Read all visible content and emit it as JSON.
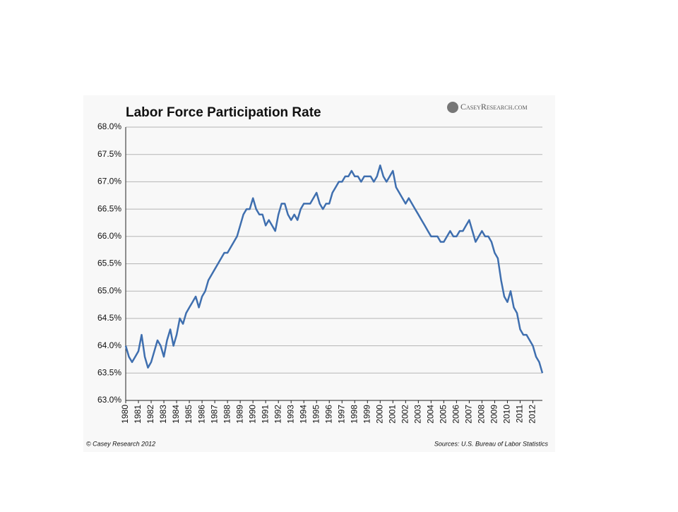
{
  "chart_data": {
    "type": "line",
    "title": "Labor Force Participation Rate",
    "logo": "CaseyResearch.com",
    "footnote": "© Casey Research 2012",
    "source": "Sources:  U.S. Bureau of Labor Statistics",
    "color": "#3f6faf",
    "grid": true,
    "xlim": [
      1980,
      2012.75
    ],
    "xticks": [
      1980,
      1981,
      1982,
      1983,
      1984,
      1985,
      1986,
      1987,
      1988,
      1989,
      1990,
      1991,
      1992,
      1993,
      1994,
      1995,
      1996,
      1997,
      1998,
      1999,
      2000,
      2001,
      2002,
      2003,
      2004,
      2005,
      2006,
      2007,
      2008,
      2009,
      2010,
      2011,
      2012
    ],
    "ylim": [
      63,
      68
    ],
    "yticks": [
      {
        "value": 63,
        "label": "63.0%"
      },
      {
        "value": 63.5,
        "label": "63.5%"
      },
      {
        "value": 64,
        "label": "64.0%"
      },
      {
        "value": 64.5,
        "label": "64.5%"
      },
      {
        "value": 65,
        "label": "65.0%"
      },
      {
        "value": 65.5,
        "label": "65.5%"
      },
      {
        "value": 66,
        "label": "66.0%"
      },
      {
        "value": 66.5,
        "label": "66.5%"
      },
      {
        "value": 67,
        "label": "67.0%"
      },
      {
        "value": 67.5,
        "label": "67.5%"
      },
      {
        "value": 68,
        "label": "68.0%"
      }
    ],
    "x": [
      1980,
      1980.25,
      1980.5,
      1980.75,
      1981,
      1981.25,
      1981.5,
      1981.75,
      1982,
      1982.25,
      1982.5,
      1982.75,
      1983,
      1983.25,
      1983.5,
      1983.75,
      1984,
      1984.25,
      1984.5,
      1984.75,
      1985,
      1985.25,
      1985.5,
      1985.75,
      1986,
      1986.25,
      1986.5,
      1986.75,
      1987,
      1987.25,
      1987.5,
      1987.75,
      1988,
      1988.25,
      1988.5,
      1988.75,
      1989,
      1989.25,
      1989.5,
      1989.75,
      1990,
      1990.25,
      1990.5,
      1990.75,
      1991,
      1991.25,
      1991.5,
      1991.75,
      1992,
      1992.25,
      1992.5,
      1992.75,
      1993,
      1993.25,
      1993.5,
      1993.75,
      1994,
      1994.25,
      1994.5,
      1994.75,
      1995,
      1995.25,
      1995.5,
      1995.75,
      1996,
      1996.25,
      1996.5,
      1996.75,
      1997,
      1997.25,
      1997.5,
      1997.75,
      1998,
      1998.25,
      1998.5,
      1998.75,
      1999,
      1999.25,
      1999.5,
      1999.75,
      2000,
      2000.25,
      2000.5,
      2000.75,
      2001,
      2001.25,
      2001.5,
      2001.75,
      2002,
      2002.25,
      2002.5,
      2002.75,
      2003,
      2003.25,
      2003.5,
      2003.75,
      2004,
      2004.25,
      2004.5,
      2004.75,
      2005,
      2005.25,
      2005.5,
      2005.75,
      2006,
      2006.25,
      2006.5,
      2006.75,
      2007,
      2007.25,
      2007.5,
      2007.75,
      2008,
      2008.25,
      2008.5,
      2008.75,
      2009,
      2009.25,
      2009.5,
      2009.75,
      2010,
      2010.25,
      2010.5,
      2010.75,
      2011,
      2011.25,
      2011.5,
      2011.75,
      2012,
      2012.25,
      2012.5,
      2012.75
    ],
    "values": [
      64.0,
      63.8,
      63.7,
      63.8,
      63.9,
      64.2,
      63.8,
      63.6,
      63.7,
      63.9,
      64.1,
      64.0,
      63.8,
      64.1,
      64.3,
      64.0,
      64.2,
      64.5,
      64.4,
      64.6,
      64.7,
      64.8,
      64.9,
      64.7,
      64.9,
      65.0,
      65.2,
      65.3,
      65.4,
      65.5,
      65.6,
      65.7,
      65.7,
      65.8,
      65.9,
      66.0,
      66.2,
      66.4,
      66.5,
      66.5,
      66.7,
      66.5,
      66.4,
      66.4,
      66.2,
      66.3,
      66.2,
      66.1,
      66.4,
      66.6,
      66.6,
      66.4,
      66.3,
      66.4,
      66.3,
      66.5,
      66.6,
      66.6,
      66.6,
      66.7,
      66.8,
      66.6,
      66.5,
      66.6,
      66.6,
      66.8,
      66.9,
      67.0,
      67.0,
      67.1,
      67.1,
      67.2,
      67.1,
      67.1,
      67.0,
      67.1,
      67.1,
      67.1,
      67.0,
      67.1,
      67.3,
      67.1,
      67.0,
      67.1,
      67.2,
      66.9,
      66.8,
      66.7,
      66.6,
      66.7,
      66.6,
      66.5,
      66.4,
      66.3,
      66.2,
      66.1,
      66.0,
      66.0,
      66.0,
      65.9,
      65.9,
      66.0,
      66.1,
      66.0,
      66.0,
      66.1,
      66.1,
      66.2,
      66.3,
      66.1,
      65.9,
      66.0,
      66.1,
      66.0,
      66.0,
      65.9,
      65.7,
      65.6,
      65.2,
      64.9,
      64.8,
      65.0,
      64.7,
      64.6,
      64.3,
      64.2,
      64.2,
      64.1,
      64.0,
      63.8,
      63.7,
      63.5
    ]
  }
}
